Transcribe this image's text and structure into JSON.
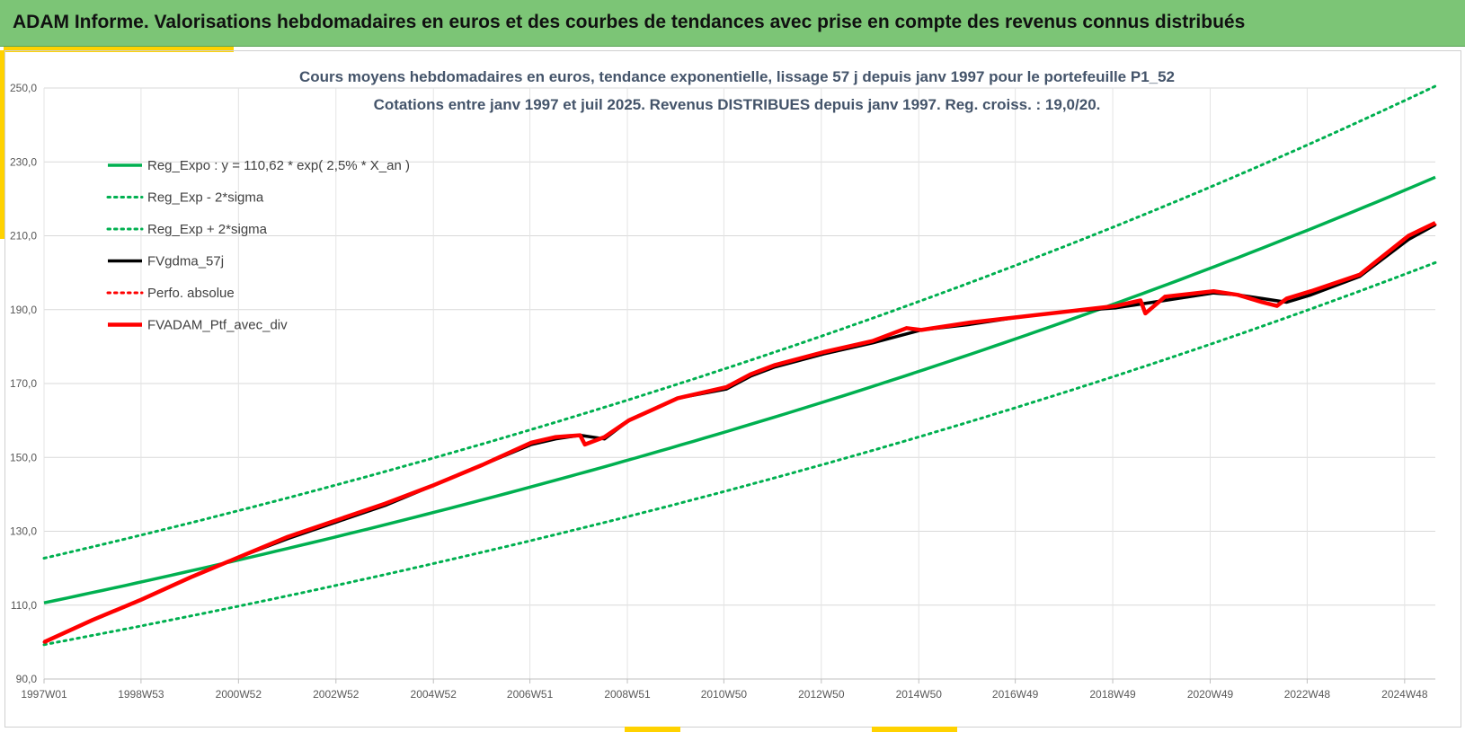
{
  "header": {
    "title": "ADAM Informe. Valorisations hebdomadaires en euros et des courbes de tendances avec prise en compte des revenus connus distribués"
  },
  "colors": {
    "banner": "#7cc576",
    "accent": "#ffd200",
    "green": "#00b050",
    "red": "#ff0000",
    "black": "#000000"
  },
  "chart_data": {
    "type": "line",
    "title": "Cours moyens hebdomadaires  en euros, tendance exponentielle, lissage 57 j depuis janv 1997 pour le portefeuille P1_52",
    "subtitle": "Cotations  entre janv 1997 et juil 2025. Revenus DISTRIBUES depuis janv 1997. Reg. croiss. : 19,0/20.",
    "xlabel": "",
    "ylabel": "",
    "x_range": [
      1997.0,
      2025.55
    ],
    "ylim": [
      90,
      250
    ],
    "y_ticks": [
      "90,0",
      "110,0",
      "130,0",
      "150,0",
      "170,0",
      "190,0",
      "210,0",
      "230,0",
      "250,0"
    ],
    "x_ticks": [
      {
        "label": "1997W01",
        "x": 1997.0
      },
      {
        "label": "1998W53",
        "x": 1998.99
      },
      {
        "label": "2000W52",
        "x": 2000.99
      },
      {
        "label": "2002W52",
        "x": 2002.99
      },
      {
        "label": "2004W52",
        "x": 2004.99
      },
      {
        "label": "2006W51",
        "x": 2006.97
      },
      {
        "label": "2008W51",
        "x": 2008.97
      },
      {
        "label": "2010W50",
        "x": 2010.95
      },
      {
        "label": "2012W50",
        "x": 2012.95
      },
      {
        "label": "2014W50",
        "x": 2014.95
      },
      {
        "label": "2016W49",
        "x": 2016.93
      },
      {
        "label": "2018W49",
        "x": 2018.93
      },
      {
        "label": "2020W49",
        "x": 2020.93
      },
      {
        "label": "2022W48",
        "x": 2022.92
      },
      {
        "label": "2024W48",
        "x": 2024.92
      }
    ],
    "grid": true,
    "legend_position": "top-left",
    "series": [
      {
        "name": "Reg_Expo : y = 110,62 * exp( 2,5% *  X_an )",
        "color": "#00b050",
        "style": "solid",
        "x": [
          1997.0,
          2025.55
        ],
        "formula": {
          "a": 110.62,
          "r": 0.025
        }
      },
      {
        "name": "Reg_Exp - 2*sigma",
        "color": "#00b050",
        "style": "dotted",
        "x": [
          1997.0,
          2025.55
        ],
        "formula": {
          "a": 99.3,
          "r": 0.025
        }
      },
      {
        "name": "Reg_Exp + 2*sigma",
        "color": "#00b050",
        "style": "dotted",
        "x": [
          1997.0,
          2025.55
        ],
        "formula": {
          "a": 122.7,
          "r": 0.025
        }
      },
      {
        "name": "FVgdma_57j",
        "color": "#000000",
        "style": "solid",
        "x": [
          1997.0,
          1998.0,
          1999.0,
          2000.0,
          2001.0,
          2002.0,
          2003.0,
          2004.0,
          2005.0,
          2006.0,
          2007.0,
          2007.5,
          2008.0,
          2008.5,
          2009.0,
          2009.5,
          2010.0,
          2011.0,
          2011.5,
          2012.0,
          2013.0,
          2014.0,
          2015.0,
          2016.0,
          2017.0,
          2018.0,
          2019.0,
          2020.0,
          2021.0,
          2021.5,
          2022.0,
          2022.5,
          2023.0,
          2024.0,
          2025.0,
          2025.55
        ],
        "values": [
          100.0,
          106.0,
          111.5,
          117.5,
          123.0,
          128.0,
          132.5,
          137.0,
          142.5,
          148.0,
          153.5,
          155.0,
          156.0,
          155.0,
          160.0,
          163.0,
          166.0,
          168.5,
          172.0,
          174.5,
          178.0,
          181.0,
          184.5,
          186.0,
          188.0,
          189.5,
          190.5,
          192.5,
          194.5,
          194.0,
          193.0,
          192.0,
          194.0,
          199.0,
          209.0,
          213.0
        ]
      },
      {
        "name": "Perfo. absolue",
        "color": "#ff0000",
        "style": "dotted",
        "x": [
          1997.0,
          1998.0,
          1999.0,
          2000.0,
          2001.0,
          2002.0,
          2003.0,
          2004.0,
          2005.0,
          2006.0,
          2007.0,
          2007.5,
          2008.0,
          2008.5,
          2009.0,
          2009.5,
          2010.0,
          2011.0,
          2011.5,
          2012.0,
          2013.0,
          2014.0,
          2015.0,
          2016.0,
          2017.0,
          2018.0,
          2019.0,
          2020.0,
          2021.0,
          2021.5,
          2022.0,
          2022.5,
          2023.0,
          2024.0,
          2025.0,
          2025.55
        ],
        "values": [
          100.0,
          106.0,
          111.5,
          117.5,
          123.0,
          128.0,
          132.5,
          137.0,
          142.5,
          148.0,
          153.5,
          155.0,
          156.0,
          155.0,
          160.0,
          163.0,
          166.0,
          168.5,
          172.0,
          174.5,
          178.0,
          181.0,
          184.5,
          186.0,
          188.0,
          189.5,
          190.5,
          192.5,
          194.5,
          194.0,
          193.0,
          192.0,
          194.0,
          199.0,
          209.0,
          213.0
        ]
      },
      {
        "name": "FVADAM_Ptf_avec_div",
        "color": "#ff0000",
        "style": "solid",
        "x": [
          1997.0,
          1998.0,
          1999.0,
          2000.0,
          2001.0,
          2002.0,
          2003.0,
          2004.0,
          2005.0,
          2006.0,
          2007.0,
          2007.5,
          2008.0,
          2008.1,
          2008.5,
          2009.0,
          2009.5,
          2010.0,
          2011.0,
          2011.5,
          2012.0,
          2013.0,
          2014.0,
          2014.7,
          2015.0,
          2016.0,
          2017.0,
          2018.0,
          2019.0,
          2019.5,
          2019.6,
          2020.0,
          2021.0,
          2021.5,
          2022.0,
          2022.3,
          2022.5,
          2023.0,
          2024.0,
          2025.0,
          2025.55
        ],
        "values": [
          100.0,
          106.0,
          111.5,
          117.5,
          123.0,
          128.5,
          133.0,
          137.5,
          142.5,
          148.0,
          154.0,
          155.5,
          156.0,
          153.5,
          155.5,
          160.0,
          163.0,
          166.0,
          169.0,
          172.5,
          175.0,
          178.5,
          181.5,
          185.0,
          184.5,
          186.5,
          188.0,
          189.5,
          191.0,
          192.5,
          189.0,
          193.5,
          195.0,
          194.0,
          192.0,
          191.0,
          193.0,
          195.0,
          199.5,
          210.0,
          213.5
        ]
      }
    ]
  }
}
